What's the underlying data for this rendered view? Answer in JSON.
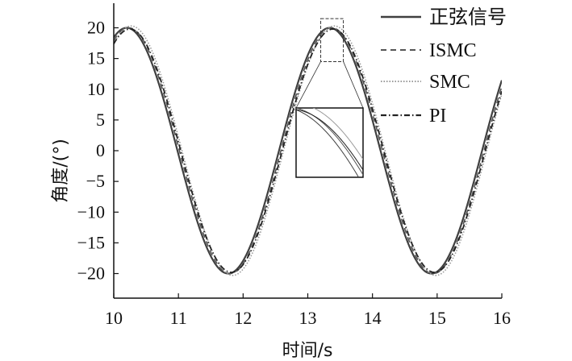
{
  "chart_data": {
    "type": "line",
    "title": "",
    "xlabel": "时间/s",
    "ylabel": "角度/(°)",
    "xlim": [
      10,
      16
    ],
    "ylim": [
      -24,
      24
    ],
    "x_ticks": [
      10,
      11,
      12,
      13,
      14,
      15,
      16
    ],
    "y_ticks": [
      20,
      15,
      10,
      5,
      0,
      -5,
      -10,
      -15,
      -20
    ],
    "y_tick_labels": [
      "20",
      "15",
      "10",
      "5",
      "0",
      "−5",
      "−10",
      "−15",
      "−20"
    ],
    "grid": false,
    "legend_position": "top-right outside",
    "series": [
      {
        "name": "正弦信号",
        "amplitude": 20,
        "period": 3.14,
        "peak_time": 10.2,
        "color": "#404040",
        "style": "solid"
      },
      {
        "name": "ISMC",
        "amplitude": 20,
        "period": 3.14,
        "peak_time": 10.23,
        "color": "#555555",
        "style": "dashed"
      },
      {
        "name": "SMC",
        "amplitude": 20.3,
        "period": 3.14,
        "peak_time": 10.27,
        "color": "#9a9a9a",
        "style": "dotted"
      },
      {
        "name": "PI",
        "amplitude": 19.8,
        "period": 3.14,
        "peak_time": 10.25,
        "color": "#222222",
        "style": "dashdot"
      }
    ],
    "zoom_region": {
      "x": [
        13.2,
        13.55
      ],
      "y": [
        14.5,
        21.5
      ]
    }
  }
}
